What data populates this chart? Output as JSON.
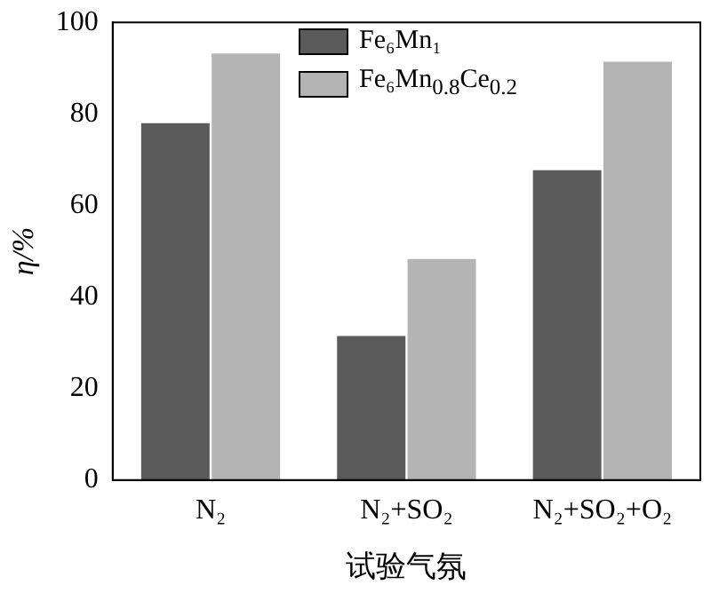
{
  "chart_data": {
    "type": "bar",
    "xlabel": "试验气氛",
    "ylabel": "η/%",
    "categories": [
      "N₂",
      "N₂+SO₂",
      "N₂+SO₂+O₂"
    ],
    "series": [
      {
        "name": "Fe₆Mn₁",
        "color": "#5a5a5a",
        "values": [
          78,
          31.5,
          67.7
        ]
      },
      {
        "name": "Fe₆Mn$_{0.8}$Ce$_{0.2}$",
        "color": "#b4b4b4",
        "values": [
          93.2,
          48.3,
          91.4
        ]
      }
    ],
    "ylim": [
      0,
      100
    ],
    "yticks": [
      0,
      20,
      40,
      60,
      80,
      100
    ],
    "grid": false,
    "legend": "top"
  }
}
